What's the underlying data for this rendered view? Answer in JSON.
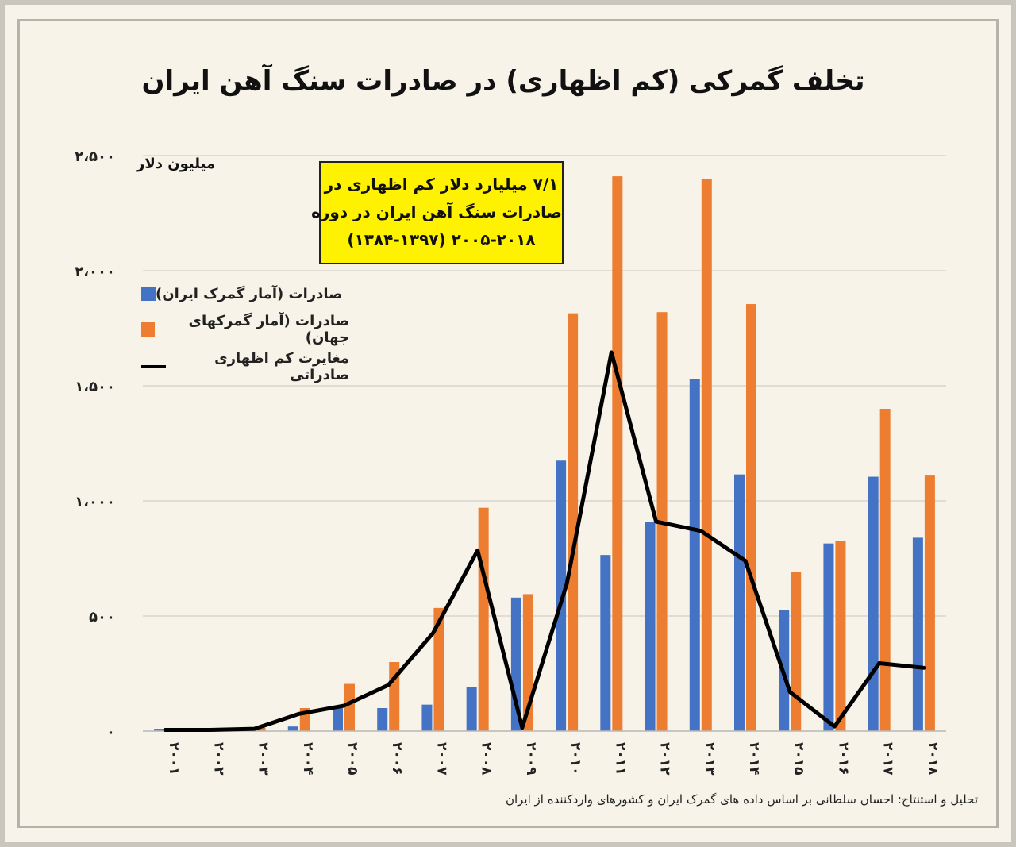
{
  "page": {
    "title": "تخلف گمرکی (کم اظهاری) در صادرات سنگ آهن ایران",
    "credit": "تحلیل و استنتاج: احسان سلطانی بر اساس داده های گمرک ایران و کشورهای واردکننده از ایران",
    "callout": [
      "۷/۱ میلیارد دلار کم اظهاری در",
      "صادرات سنگ آهن ایران در دوره",
      "۲۰۰۵-۲۰۱۸ (۱۳۸۴-۱۳۹۷)"
    ]
  },
  "colors": {
    "iran": "#4472c4",
    "world": "#ed7d31",
    "diff": "#000000",
    "grid": "#d9d6cf",
    "callout_bg": "#fff200"
  },
  "chart_data": {
    "type": "bar",
    "title": "تخلف گمرکی (کم اظهاری) در صادرات سنگ آهن ایران",
    "ylabel": "میلیون دلار",
    "xlabel": "",
    "ylim": [
      0,
      2500
    ],
    "yticks": [
      0,
      500,
      1000,
      1500,
      2000,
      2500
    ],
    "ytick_labels": [
      "۰",
      "۵۰۰",
      "۱،۰۰۰",
      "۱،۵۰۰",
      "۲،۰۰۰",
      "۲،۵۰۰"
    ],
    "categories": [
      "2001",
      "2002",
      "2003",
      "2004",
      "2005",
      "2006",
      "2007",
      "2008",
      "2009",
      "2010",
      "2011",
      "2012",
      "2013",
      "2014",
      "2015",
      "2016",
      "2017",
      "2018"
    ],
    "category_labels": [
      "۲۰۰۱",
      "۲۰۰۲",
      "۲۰۰۳",
      "۲۰۰۴",
      "۲۰۰۵",
      "۲۰۰۶",
      "۲۰۰۷",
      "۲۰۰۸",
      "۲۰۰۹",
      "۲۰۱۰",
      "۲۰۱۱",
      "۲۰۱۲",
      "۲۰۱۳",
      "۲۰۱۴",
      "۲۰۱۵",
      "۲۰۱۶",
      "۲۰۱۷",
      "۲۰۱۸"
    ],
    "series": [
      {
        "name": "صادرات (آمار گمرک ایران)",
        "kind": "bar",
        "color": "#4472c4",
        "values": [
          10,
          0,
          0,
          20,
          100,
          100,
          115,
          190,
          580,
          1175,
          765,
          910,
          1530,
          1115,
          525,
          815,
          1105,
          840
        ]
      },
      {
        "name": "صادرات (آمار گمرکهای جهان)",
        "kind": "bar",
        "color": "#ed7d31",
        "values": [
          0,
          0,
          15,
          100,
          205,
          300,
          535,
          970,
          595,
          1815,
          2410,
          1820,
          2400,
          1855,
          690,
          825,
          1400,
          1110
        ]
      },
      {
        "name": "مغایرت کم اظهاری صادراتی",
        "kind": "line",
        "color": "#000000",
        "values": [
          5,
          5,
          10,
          75,
          110,
          200,
          425,
          785,
          15,
          640,
          1645,
          910,
          870,
          740,
          170,
          20,
          295,
          275
        ]
      }
    ],
    "legend": "top-left",
    "grid": true
  }
}
